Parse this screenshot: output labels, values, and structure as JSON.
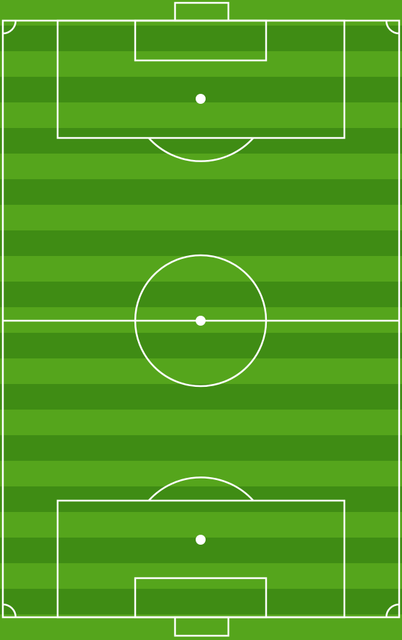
{
  "pitch": {
    "colors": {
      "grass_light": "#55a51c",
      "grass_dark": "#3f8c14",
      "lines": "#ffffff"
    },
    "stripe_count": 25
  }
}
